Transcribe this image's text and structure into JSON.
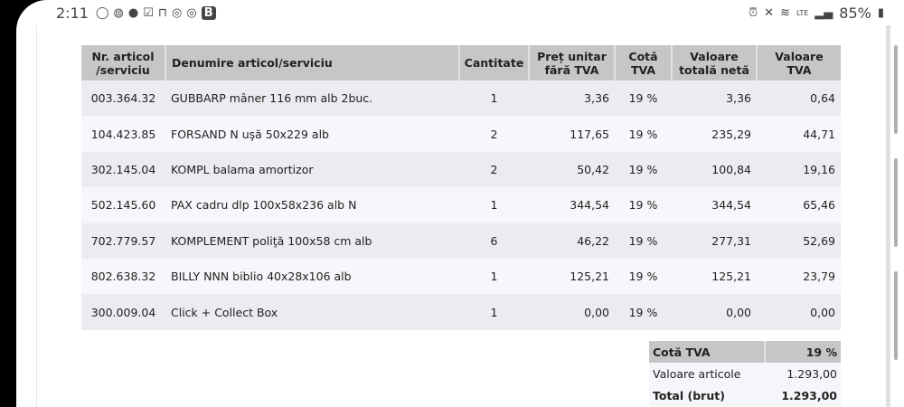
{
  "status_bar": {
    "time": "2:11",
    "left_icons": [
      "whatsapp-icon",
      "app-icon",
      "app-icon",
      "check-icon",
      "lock-icon",
      "instagram-icon",
      "instagram-icon",
      "b-icon"
    ],
    "battery": "85%",
    "network": "LTE"
  },
  "table": {
    "headers": [
      "Nr. articol /serviciu",
      "Denumire articol/serviciu",
      "Cantitate",
      "Preț unitar fără TVA",
      "Cotă TVA",
      "Valoare totală netă",
      "Valoare TVA"
    ],
    "rows": [
      [
        "003.364.32",
        "GUBBARP mâner 116 mm alb 2buc.",
        "1",
        "3,36",
        "19 %",
        "3,36",
        "0,64"
      ],
      [
        "104.423.85",
        "FORSAND N uşă 50x229 alb",
        "2",
        "117,65",
        "19 %",
        "235,29",
        "44,71"
      ],
      [
        "302.145.04",
        "KOMPL balama amortizor",
        "2",
        "50,42",
        "19 %",
        "100,84",
        "19,16"
      ],
      [
        "502.145.60",
        "PAX cadru dlp 100x58x236 alb N",
        "1",
        "344,54",
        "19 %",
        "344,54",
        "65,46"
      ],
      [
        "702.779.57",
        "KOMPLEMENT poliţă 100x58 cm alb",
        "6",
        "46,22",
        "19 %",
        "277,31",
        "52,69"
      ],
      [
        "802.638.32",
        "BILLY NNN biblio 40x28x106 alb",
        "1",
        "125,21",
        "19 %",
        "125,21",
        "23,79"
      ],
      [
        "300.009.04",
        "Click + Collect Box",
        "1",
        "0,00",
        "19 %",
        "0,00",
        "0,00"
      ]
    ]
  },
  "summary": {
    "rate_label": "Cotă TVA",
    "rate_value": "19 %",
    "items_label": "Valoare articole",
    "items_value": "1.293,00",
    "total_label": "Total (brut)",
    "total_value": "1.293,00"
  }
}
